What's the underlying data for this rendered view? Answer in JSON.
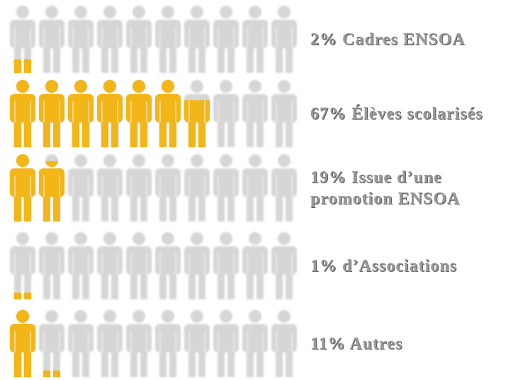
{
  "chart_data": {
    "type": "pictograph",
    "categories": [
      "Cadres ENSOA",
      "Élèves scolarisés",
      "Issue d’une promotion ENSOA",
      "d’Associations",
      "Autres"
    ],
    "values": [
      2,
      67,
      19,
      1,
      11
    ],
    "value_labels": [
      "2%",
      "67%",
      "19%",
      "1%",
      "11%"
    ],
    "color": "#f2b619",
    "empty_color": "#d6d6d6"
  }
}
